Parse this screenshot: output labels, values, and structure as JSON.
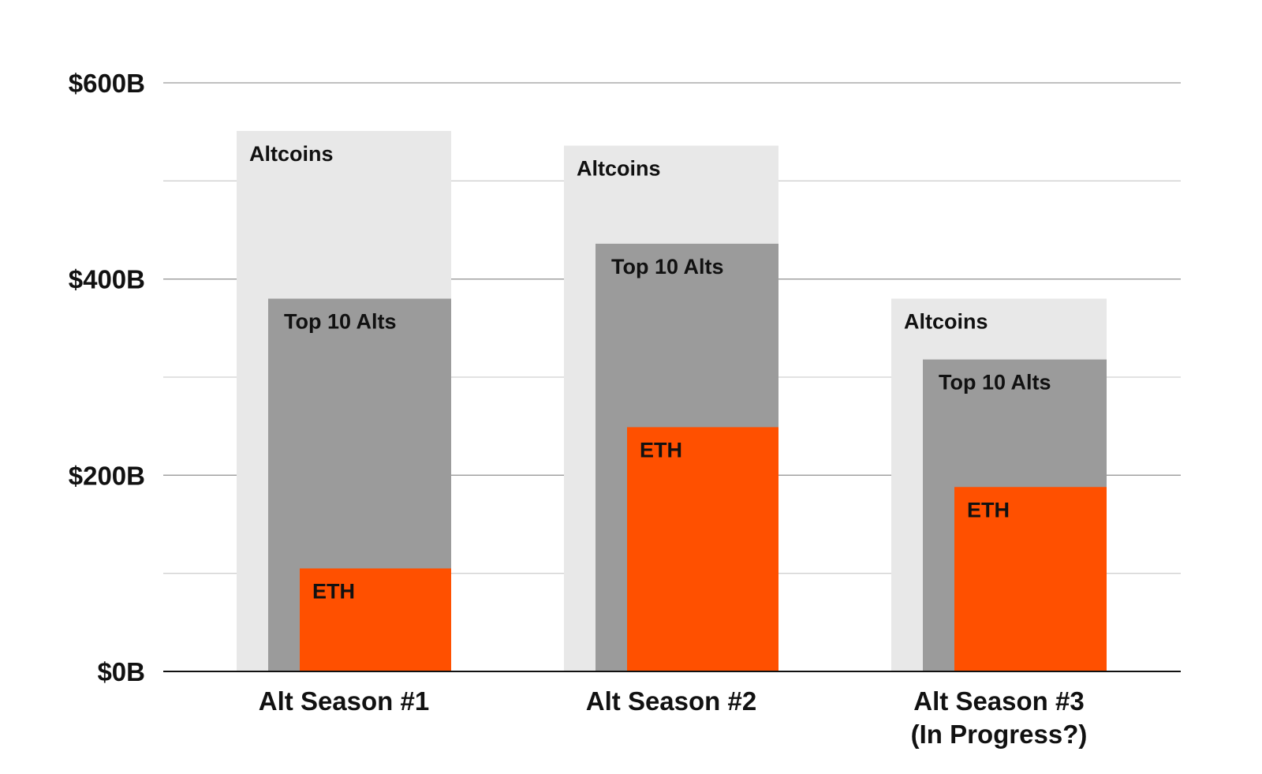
{
  "chart_data": {
    "type": "bar",
    "layout": "nested-overlapping",
    "categories": [
      [
        "Alt Season #1"
      ],
      [
        "Alt Season #2"
      ],
      [
        "Alt Season #3",
        "(In Progress?)"
      ]
    ],
    "series": [
      {
        "name": "Altcoins",
        "values": [
          551,
          536,
          380
        ]
      },
      {
        "name": "Top 10 Alts",
        "values": [
          380,
          436,
          318
        ]
      },
      {
        "name": "ETH",
        "values": [
          105,
          249,
          188
        ]
      }
    ],
    "ylim": [
      0,
      600
    ],
    "yticks": [
      0,
      100,
      200,
      300,
      400,
      500,
      600
    ],
    "ytick_labels": [
      "$0B",
      "",
      "$200B",
      "",
      "$400B",
      "",
      "$600B"
    ],
    "grid": true,
    "legend": "none",
    "colors": {
      "Altcoins": "#e8e8e8",
      "Top 10 Alts": "#9b9b9b",
      "ETH": "#ff5000",
      "grid_major": "#9a9a9a",
      "grid_minor": "#d0d0d0",
      "baseline": "#111111"
    }
  }
}
